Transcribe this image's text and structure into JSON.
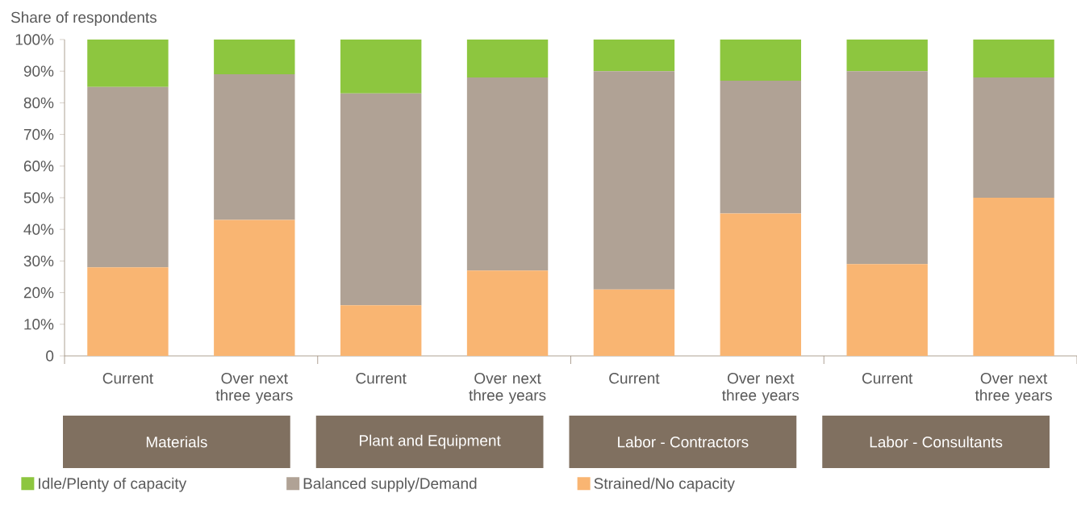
{
  "chart_data": {
    "type": "bar",
    "stacked": true,
    "ylabel": "Share of respondents",
    "categories": [
      "Current",
      "Over next three years",
      "Current",
      "Over next three years",
      "Current",
      "Over next three years",
      "Current",
      "Over next three years"
    ],
    "series": [
      {
        "name": "Strained/No capacity",
        "color": "#f9b572",
        "values": [
          28,
          43,
          16,
          27,
          21,
          45,
          29,
          50
        ]
      },
      {
        "name": "Balanced supply/Demand",
        "color": "#b0a295",
        "values": [
          57,
          46,
          67,
          61,
          69,
          42,
          61,
          38
        ]
      },
      {
        "name": "Idle/Plenty of capacity",
        "color": "#8dc63f",
        "values": [
          15,
          11,
          17,
          12,
          10,
          13,
          10,
          12
        ]
      }
    ],
    "ylim": [
      0,
      100
    ],
    "yticks": [
      0,
      {
        "value": 10,
        "label": "10%"
      },
      {
        "value": 20,
        "label": "20%"
      },
      {
        "value": 30,
        "label": "30%"
      },
      {
        "value": 40,
        "label": "40%"
      },
      {
        "value": 50,
        "label": "50%"
      },
      {
        "value": 60,
        "label": "60%"
      },
      {
        "value": 70,
        "label": "70%"
      },
      {
        "value": 80,
        "label": "80%"
      },
      {
        "value": 90,
        "label": "90%"
      },
      {
        "value": 100,
        "label": "100%"
      }
    ],
    "annotations": [
      "Materials",
      "Plant and Equipment",
      "Labor - Contractors",
      "Labor - Consultants"
    ],
    "legend": "bottom"
  }
}
